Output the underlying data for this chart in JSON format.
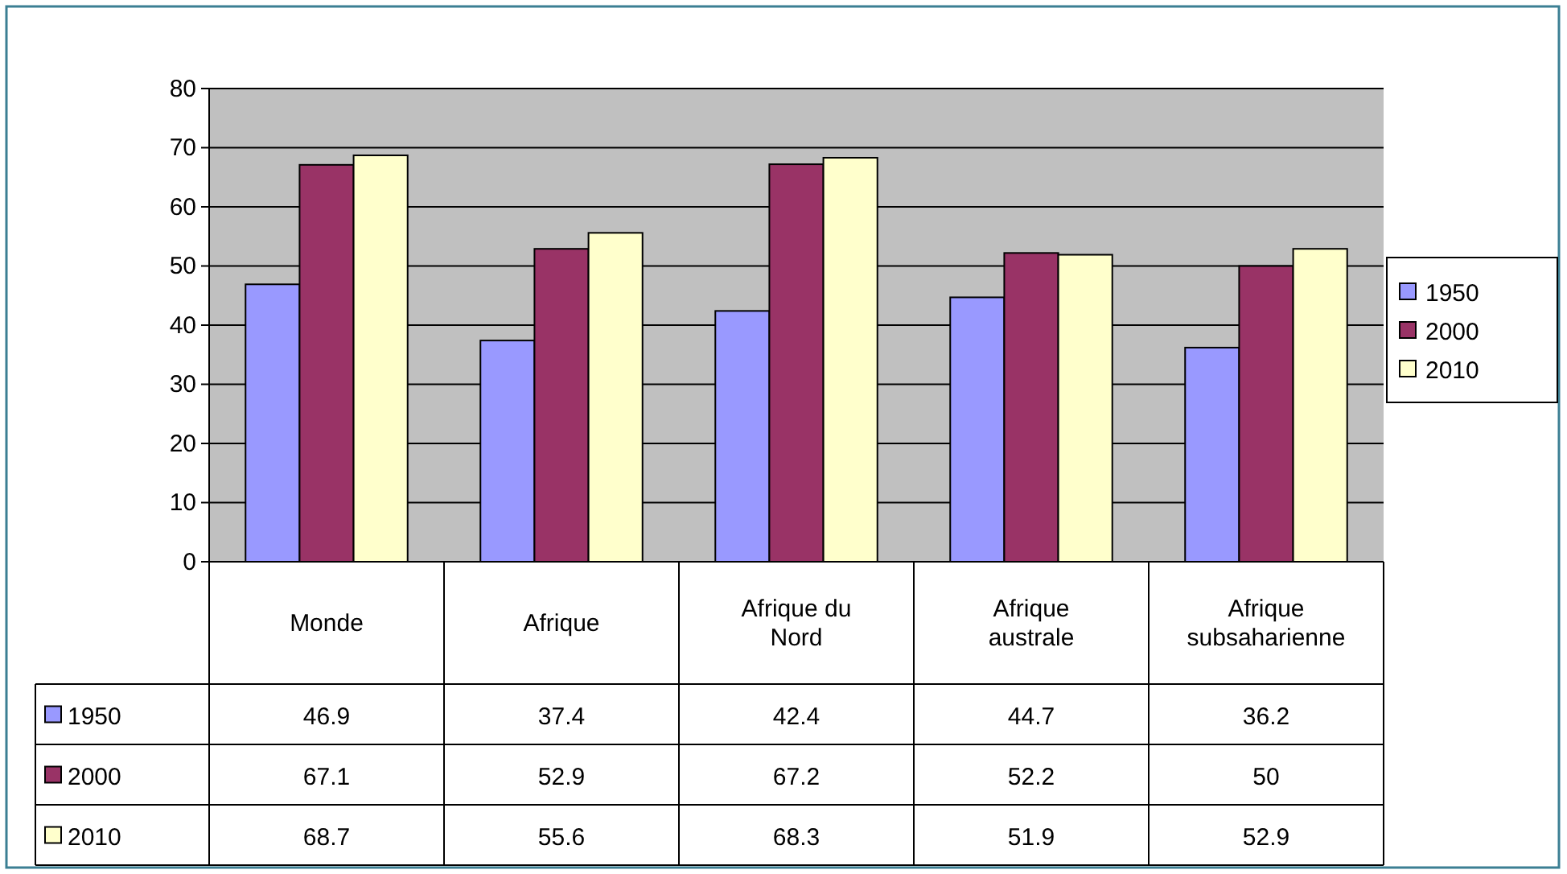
{
  "chart_data": {
    "type": "bar",
    "categories": [
      "Monde",
      "Afrique",
      "Afrique du Nord",
      "Afrique australe",
      "Afrique subsaharienne"
    ],
    "series": [
      {
        "name": "1950",
        "color": "#9999ff",
        "values": [
          46.9,
          37.4,
          42.4,
          44.7,
          36.2
        ]
      },
      {
        "name": "2000",
        "color": "#993366",
        "values": [
          67.1,
          52.9,
          67.2,
          52.2,
          50
        ]
      },
      {
        "name": "2010",
        "color": "#ffffcc",
        "values": [
          68.7,
          55.6,
          68.3,
          51.9,
          52.9
        ]
      }
    ],
    "ylim": [
      0,
      80
    ],
    "yticks": [
      0,
      10,
      20,
      30,
      40,
      50,
      60,
      70,
      80
    ],
    "grid": "y",
    "legend": "right",
    "data_labels": true
  }
}
